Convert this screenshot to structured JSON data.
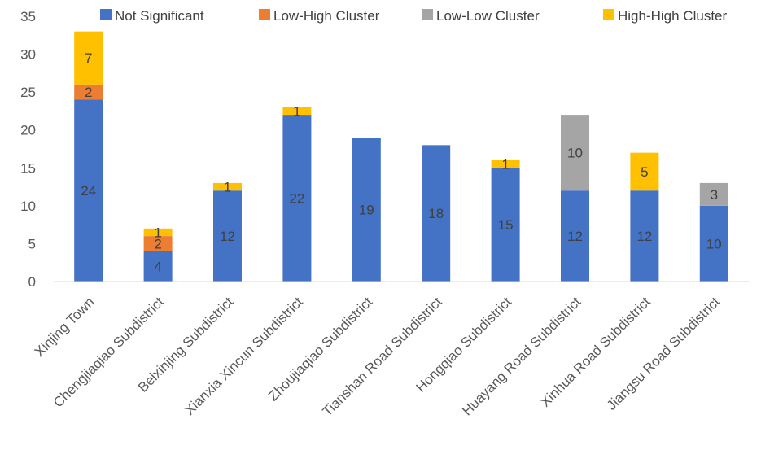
{
  "chart_data": {
    "type": "bar",
    "stacked": true,
    "title": "",
    "xlabel": "",
    "ylabel": "",
    "ylim": [
      0,
      35
    ],
    "yticks": [
      0,
      5,
      10,
      15,
      20,
      25,
      30,
      35
    ],
    "grid": false,
    "legend_position": "top",
    "categories": [
      "Xinjing Town",
      "Chengjiaqiao Subdistrict",
      "Beixinjing Subdistrict",
      "Xianxia Xincun Subdistrict",
      "Zhoujiaqiao Subdistrict",
      "Tianshan Road Subdistrict",
      "Hongqiao  Subdistrict",
      "Huayang Road Subdistrict",
      "Xinhua Road Subdistrict",
      "Jiangsu Road Subdistrict"
    ],
    "series": [
      {
        "name": "Not Significant",
        "color": "#4472C4",
        "values": [
          24,
          4,
          12,
          22,
          19,
          18,
          15,
          12,
          12,
          10
        ]
      },
      {
        "name": "Low-High Cluster",
        "color": "#ED7D31",
        "values": [
          2,
          2,
          0,
          0,
          0,
          0,
          0,
          0,
          0,
          0
        ]
      },
      {
        "name": "Low-Low Cluster",
        "color": "#A5A5A5",
        "values": [
          0,
          0,
          0,
          0,
          0,
          0,
          0,
          10,
          0,
          3
        ]
      },
      {
        "name": "High-High Cluster",
        "color": "#FFC000",
        "values": [
          7,
          1,
          1,
          1,
          0,
          0,
          1,
          0,
          5,
          0
        ]
      }
    ]
  }
}
